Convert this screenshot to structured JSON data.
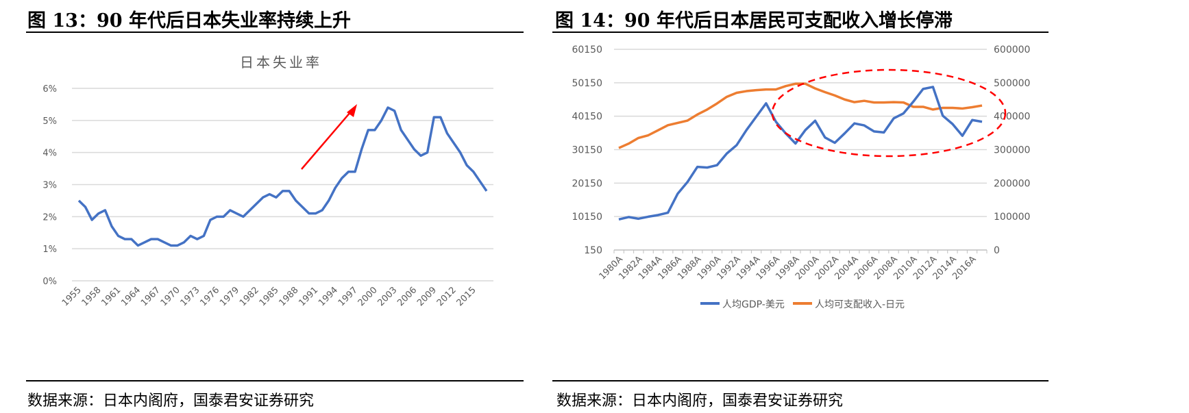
{
  "left": {
    "figure_title": "图 13：90 年代后日本失业率持续上升",
    "source": "数据来源：日本内阁府，国泰君安证券研究"
  },
  "right": {
    "figure_title": "图 14：90 年代后日本居民可支配收入增长停滞",
    "source": "数据来源：日本内阁府，国泰君安证券研究"
  },
  "chart_data": [
    {
      "type": "line",
      "title": "日本失业率",
      "ylim": [
        0,
        6
      ],
      "yticks": [
        "0%",
        "1%",
        "2%",
        "3%",
        "4%",
        "5%",
        "6%"
      ],
      "x": [
        1955,
        1956,
        1957,
        1958,
        1959,
        1960,
        1961,
        1962,
        1963,
        1964,
        1965,
        1966,
        1967,
        1968,
        1969,
        1970,
        1971,
        1972,
        1973,
        1974,
        1975,
        1976,
        1977,
        1978,
        1979,
        1980,
        1981,
        1982,
        1983,
        1984,
        1985,
        1986,
        1987,
        1988,
        1989,
        1990,
        1991,
        1992,
        1993,
        1994,
        1995,
        1996,
        1997,
        1998,
        1999,
        2000,
        2001,
        2002,
        2003,
        2004,
        2005,
        2006,
        2007,
        2008,
        2009,
        2010,
        2011,
        2012,
        2013,
        2014,
        2015,
        2016,
        2017
      ],
      "xticks": [
        "1955",
        "1958",
        "1961",
        "1964",
        "1967",
        "1970",
        "1973",
        "1976",
        "1979",
        "1982",
        "1985",
        "1988",
        "1991",
        "1994",
        "1997",
        "2000",
        "2003",
        "2006",
        "2009",
        "2012",
        "2015"
      ],
      "values": [
        2.5,
        2.3,
        1.9,
        2.1,
        2.2,
        1.7,
        1.4,
        1.3,
        1.3,
        1.1,
        1.2,
        1.3,
        1.3,
        1.2,
        1.1,
        1.1,
        1.2,
        1.4,
        1.3,
        1.4,
        1.9,
        2.0,
        2.0,
        2.2,
        2.1,
        2.0,
        2.2,
        2.4,
        2.6,
        2.7,
        2.6,
        2.8,
        2.8,
        2.5,
        2.3,
        2.1,
        2.1,
        2.2,
        2.5,
        2.9,
        3.2,
        3.4,
        3.4,
        4.1,
        4.7,
        4.7,
        5.0,
        5.4,
        5.3,
        4.7,
        4.4,
        4.1,
        3.9,
        4.0,
        5.1,
        5.1,
        4.6,
        4.3,
        4.0,
        3.6,
        3.4,
        3.1,
        2.8
      ],
      "color": "#4472C4",
      "annotation": "red upward arrow",
      "grid": true
    },
    {
      "type": "line",
      "ylim": [
        150,
        60150
      ],
      "y2lim": [
        0,
        600000
      ],
      "yticks": [
        "150",
        "10150",
        "20150",
        "30150",
        "40150",
        "50150",
        "60150"
      ],
      "y2ticks": [
        "0",
        "100000",
        "200000",
        "300000",
        "400000",
        "500000",
        "600000"
      ],
      "x": [
        "1980A",
        "1981A",
        "1982A",
        "1983A",
        "1984A",
        "1985A",
        "1986A",
        "1987A",
        "1988A",
        "1989A",
        "1990A",
        "1991A",
        "1992A",
        "1993A",
        "1994A",
        "1995A",
        "1996A",
        "1997A",
        "1998A",
        "1999A",
        "2000A",
        "2001A",
        "2002A",
        "2003A",
        "2004A",
        "2005A",
        "2006A",
        "2007A",
        "2008A",
        "2009A",
        "2010A",
        "2011A",
        "2012A",
        "2013A",
        "2014A",
        "2015A",
        "2016A",
        "2017A"
      ],
      "xticks": [
        "1980A",
        "1982A",
        "1984A",
        "1986A",
        "1988A",
        "1990A",
        "1992A",
        "1994A",
        "1996A",
        "1998A",
        "2000A",
        "2002A",
        "2004A",
        "2006A",
        "2008A",
        "2010A",
        "2012A",
        "2014A",
        "2016A"
      ],
      "series": [
        {
          "name": "人均GDP-美元",
          "axis": "left",
          "color": "#4472C4",
          "values": [
            9300,
            10000,
            9500,
            10100,
            10600,
            11300,
            17000,
            20500,
            25000,
            24800,
            25500,
            29000,
            31500,
            36000,
            40000,
            44000,
            38500,
            35000,
            32000,
            36000,
            38800,
            33800,
            32200,
            35000,
            38000,
            37400,
            35600,
            35300,
            39500,
            41000,
            44500,
            48300,
            48900,
            40300,
            37800,
            34300,
            39000,
            38500
          ]
        },
        {
          "name": "人均可支配收入-日元",
          "axis": "right",
          "color": "#ED7D31",
          "values": [
            305000,
            318000,
            335000,
            343000,
            358000,
            373000,
            380000,
            387000,
            405000,
            420000,
            438000,
            458000,
            470000,
            475000,
            478000,
            480000,
            480000,
            490000,
            497000,
            497000,
            483000,
            472000,
            462000,
            450000,
            442000,
            446000,
            441000,
            441000,
            442000,
            441000,
            428000,
            428000,
            420000,
            425000,
            425000,
            423000,
            427000,
            432000
          ]
        }
      ],
      "legend": "bottom",
      "annotation": "red dashed ellipse",
      "grid": true
    }
  ]
}
